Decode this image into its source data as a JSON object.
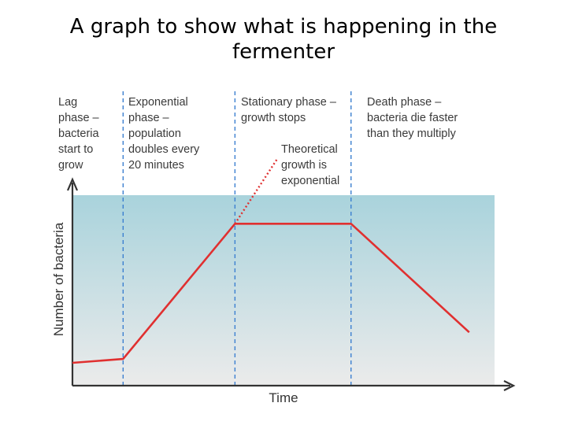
{
  "slide": {
    "title": "A graph to show what is happening in the fermenter"
  },
  "colors": {
    "curve": "#e03030",
    "phase_divider": "#3b7fd0",
    "band_top": "#a9d3dc",
    "band_bottom": "#ebebeb",
    "axis": "#333333"
  },
  "chart_data": {
    "type": "line",
    "title": "",
    "xlabel": "Time",
    "ylabel": "Number of bacteria",
    "xlim": [
      0,
      10
    ],
    "ylim": [
      0,
      10
    ],
    "grid": false,
    "series": [
      {
        "name": "",
        "x": [
          0.0,
          1.2,
          3.85,
          6.6,
          9.4
        ],
        "y": [
          1.2,
          1.4,
          8.5,
          8.5,
          2.8
        ]
      }
    ],
    "theoretical_growth": {
      "x": [
        3.85,
        4.85
      ],
      "y": [
        8.5,
        11.9
      ]
    },
    "phase_boundaries": [
      1.2,
      3.85,
      6.6
    ],
    "phases": [
      {
        "name": "lag",
        "lines": [
          "Lag",
          "phase –",
          "bacteria",
          "start to",
          "grow"
        ]
      },
      {
        "name": "exponential",
        "lines": [
          "Exponential",
          "phase –",
          "population",
          "doubles every",
          "20 minutes"
        ]
      },
      {
        "name": "stationary",
        "lines": [
          "Stationary phase –",
          "growth stops"
        ]
      },
      {
        "name": "death",
        "lines": [
          "Death phase –",
          "bacteria die faster",
          "than they multiply"
        ]
      }
    ],
    "annotations": [
      {
        "name": "theoretical",
        "lines": [
          "Theoretical",
          "growth is",
          "exponential"
        ]
      }
    ]
  }
}
